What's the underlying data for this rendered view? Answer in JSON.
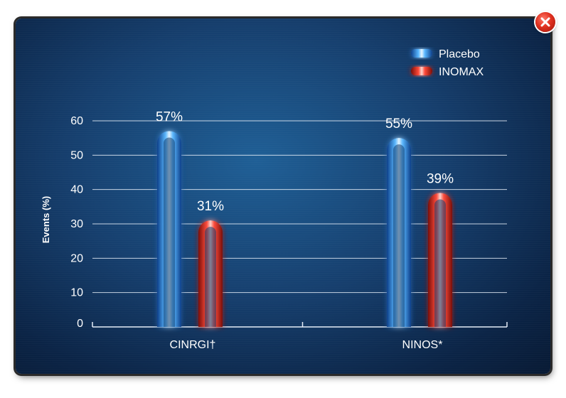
{
  "chart_data": {
    "type": "bar",
    "categories": [
      "CINRGI†",
      "NINOS*"
    ],
    "series": [
      {
        "name": "Placebo",
        "values": [
          57,
          55
        ],
        "labels": [
          "57%",
          "55%"
        ],
        "color": "#4aa8ff"
      },
      {
        "name": "INOMAX",
        "values": [
          31,
          39
        ],
        "labels": [
          "31%",
          "39%"
        ],
        "color": "#ff4a3a"
      }
    ],
    "yticks": [
      "0",
      "10",
      "20",
      "30",
      "40",
      "50",
      "60"
    ],
    "ylabel": "Events (%)",
    "xlabel": "",
    "ylim": [
      0,
      60
    ],
    "grid": true,
    "legend_position": "top-right"
  },
  "window": {
    "close_icon": "close-icon"
  }
}
